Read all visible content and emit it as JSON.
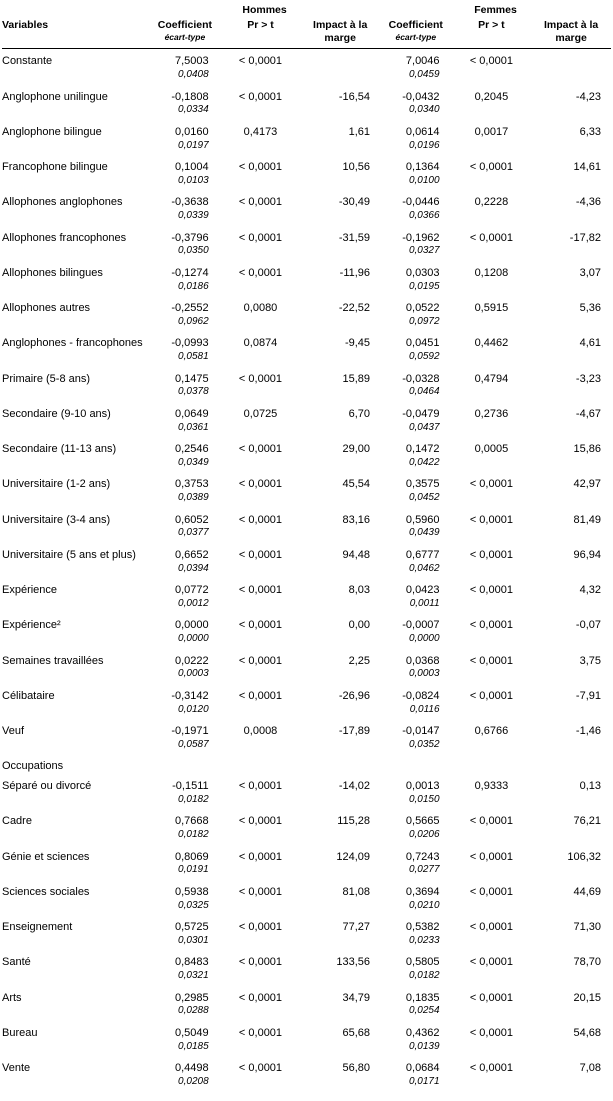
{
  "headers": {
    "variables": "Variables",
    "group_m": "Hommes",
    "group_f": "Femmes",
    "coef": "Coefficient",
    "coef_sub": "écart-type",
    "prt": "Pr > t",
    "impact_l1": "Impact à la",
    "impact_l2": "marge"
  },
  "sections": [
    {
      "label": "Occupations",
      "after_index": 20
    }
  ],
  "rows": [
    {
      "var": "Constante",
      "m": {
        "coef": "7,5003",
        "se": "0,0408",
        "pr": "< 0,0001",
        "imp": ""
      },
      "f": {
        "coef": "7,0046",
        "se": "0,0459",
        "pr": "< 0,0001",
        "imp": ""
      }
    },
    {
      "var": "Anglophone unilingue",
      "m": {
        "coef": "-0,1808",
        "se": "0,0334",
        "pr": "< 0,0001",
        "imp": "-16,54"
      },
      "f": {
        "coef": "-0,0432",
        "se": "0,0340",
        "pr": "0,2045",
        "imp": "-4,23"
      }
    },
    {
      "var": "Anglophone bilingue",
      "m": {
        "coef": "0,0160",
        "se": "0,0197",
        "pr": "0,4173",
        "imp": "1,61"
      },
      "f": {
        "coef": "0,0614",
        "se": "0,0196",
        "pr": "0,0017",
        "imp": "6,33"
      }
    },
    {
      "var": "Francophone bilingue",
      "m": {
        "coef": "0,1004",
        "se": "0,0103",
        "pr": "< 0,0001",
        "imp": "10,56"
      },
      "f": {
        "coef": "0,1364",
        "se": "0,0100",
        "pr": "< 0,0001",
        "imp": "14,61"
      }
    },
    {
      "var": "Allophones anglophones",
      "m": {
        "coef": "-0,3638",
        "se": "0,0339",
        "pr": "< 0,0001",
        "imp": "-30,49"
      },
      "f": {
        "coef": "-0,0446",
        "se": "0,0366",
        "pr": "0,2228",
        "imp": "-4,36"
      }
    },
    {
      "var": "Allophones francophones",
      "m": {
        "coef": "-0,3796",
        "se": "0,0350",
        "pr": "< 0,0001",
        "imp": "-31,59"
      },
      "f": {
        "coef": "-0,1962",
        "se": "0,0327",
        "pr": "< 0,0001",
        "imp": "-17,82"
      }
    },
    {
      "var": "Allophones bilingues",
      "m": {
        "coef": "-0,1274",
        "se": "0,0186",
        "pr": "< 0,0001",
        "imp": "-11,96"
      },
      "f": {
        "coef": "0,0303",
        "se": "0,0195",
        "pr": "0,1208",
        "imp": "3,07"
      }
    },
    {
      "var": "Allophones autres",
      "m": {
        "coef": "-0,2552",
        "se": "0,0962",
        "pr": "0,0080",
        "imp": "-22,52"
      },
      "f": {
        "coef": "0,0522",
        "se": "0,0972",
        "pr": "0,5915",
        "imp": "5,36"
      }
    },
    {
      "var": "Anglophones - francophones",
      "m": {
        "coef": "-0,0993",
        "se": "0,0581",
        "pr": "0,0874",
        "imp": "-9,45"
      },
      "f": {
        "coef": "0,0451",
        "se": "0,0592",
        "pr": "0,4462",
        "imp": "4,61"
      }
    },
    {
      "var": "Primaire (5-8 ans)",
      "m": {
        "coef": "0,1475",
        "se": "0,0378",
        "pr": "< 0,0001",
        "imp": "15,89"
      },
      "f": {
        "coef": "-0,0328",
        "se": "0,0464",
        "pr": "0,4794",
        "imp": "-3,23"
      }
    },
    {
      "var": "Secondaire (9-10 ans)",
      "m": {
        "coef": "0,0649",
        "se": "0,0361",
        "pr": "0,0725",
        "imp": "6,70"
      },
      "f": {
        "coef": "-0,0479",
        "se": "0,0437",
        "pr": "0,2736",
        "imp": "-4,67"
      }
    },
    {
      "var": "Secondaire (11-13 ans)",
      "m": {
        "coef": "0,2546",
        "se": "0,0349",
        "pr": "< 0,0001",
        "imp": "29,00"
      },
      "f": {
        "coef": "0,1472",
        "se": "0,0422",
        "pr": "0,0005",
        "imp": "15,86"
      }
    },
    {
      "var": "Universitaire (1-2 ans)",
      "m": {
        "coef": "0,3753",
        "se": "0,0389",
        "pr": "< 0,0001",
        "imp": "45,54"
      },
      "f": {
        "coef": "0,3575",
        "se": "0,0452",
        "pr": "< 0,0001",
        "imp": "42,97"
      }
    },
    {
      "var": "Universitaire (3-4 ans)",
      "m": {
        "coef": "0,6052",
        "se": "0,0377",
        "pr": "< 0,0001",
        "imp": "83,16"
      },
      "f": {
        "coef": "0,5960",
        "se": "0,0439",
        "pr": "< 0,0001",
        "imp": "81,49"
      }
    },
    {
      "var": "Universitaire (5 ans et plus)",
      "m": {
        "coef": "0,6652",
        "se": "0,0394",
        "pr": "< 0,0001",
        "imp": "94,48"
      },
      "f": {
        "coef": "0,6777",
        "se": "0,0462",
        "pr": "< 0,0001",
        "imp": "96,94"
      }
    },
    {
      "var": "Expérience",
      "m": {
        "coef": "0,0772",
        "se": "0,0012",
        "pr": "< 0,0001",
        "imp": "8,03"
      },
      "f": {
        "coef": "0,0423",
        "se": "0,0011",
        "pr": "< 0,0001",
        "imp": "4,32"
      }
    },
    {
      "var": "Expérience²",
      "m": {
        "coef": "0,0000",
        "se": "0,0000",
        "pr": "< 0,0001",
        "imp": "0,00"
      },
      "f": {
        "coef": "-0,0007",
        "se": "0,0000",
        "pr": "< 0,0001",
        "imp": "-0,07"
      }
    },
    {
      "var": "Semaines travaillées",
      "m": {
        "coef": "0,0222",
        "se": "0,0003",
        "pr": "< 0,0001",
        "imp": "2,25"
      },
      "f": {
        "coef": "0,0368",
        "se": "0,0003",
        "pr": "< 0,0001",
        "imp": "3,75"
      }
    },
    {
      "var": "Célibataire",
      "m": {
        "coef": "-0,3142",
        "se": "0,0120",
        "pr": "< 0,0001",
        "imp": "-26,96"
      },
      "f": {
        "coef": "-0,0824",
        "se": "0,0116",
        "pr": "< 0,0001",
        "imp": "-7,91"
      }
    },
    {
      "var": "Veuf",
      "m": {
        "coef": "-0,1971",
        "se": "0,0587",
        "pr": "0,0008",
        "imp": "-17,89"
      },
      "f": {
        "coef": "-0,0147",
        "se": "0,0352",
        "pr": "0,6766",
        "imp": "-1,46"
      }
    },
    {
      "var": "Séparé ou divorcé",
      "m": {
        "coef": "-0,1511",
        "se": "0,0182",
        "pr": "< 0,0001",
        "imp": "-14,02"
      },
      "f": {
        "coef": "0,0013",
        "se": "0,0150",
        "pr": "0,9333",
        "imp": "0,13"
      }
    },
    {
      "var": "Cadre",
      "m": {
        "coef": "0,7668",
        "se": "0,0182",
        "pr": "< 0,0001",
        "imp": "115,28"
      },
      "f": {
        "coef": "0,5665",
        "se": "0,0206",
        "pr": "< 0,0001",
        "imp": "76,21"
      }
    },
    {
      "var": "Génie et sciences",
      "m": {
        "coef": "0,8069",
        "se": "0,0191",
        "pr": "< 0,0001",
        "imp": "124,09"
      },
      "f": {
        "coef": "0,7243",
        "se": "0,0277",
        "pr": "< 0,0001",
        "imp": "106,32"
      }
    },
    {
      "var": "Sciences sociales",
      "m": {
        "coef": "0,5938",
        "se": "0,0325",
        "pr": "< 0,0001",
        "imp": "81,08"
      },
      "f": {
        "coef": "0,3694",
        "se": "0,0210",
        "pr": "< 0,0001",
        "imp": "44,69"
      }
    },
    {
      "var": "Enseignement",
      "m": {
        "coef": "0,5725",
        "se": "0,0301",
        "pr": "< 0,0001",
        "imp": "77,27"
      },
      "f": {
        "coef": "0,5382",
        "se": "0,0233",
        "pr": "< 0,0001",
        "imp": "71,30"
      }
    },
    {
      "var": "Santé",
      "m": {
        "coef": "0,8483",
        "se": "0,0321",
        "pr": "< 0,0001",
        "imp": "133,56"
      },
      "f": {
        "coef": "0,5805",
        "se": "0,0182",
        "pr": "< 0,0001",
        "imp": "78,70"
      }
    },
    {
      "var": "Arts",
      "m": {
        "coef": "0,2985",
        "se": "0,0288",
        "pr": "< 0,0001",
        "imp": "34,79"
      },
      "f": {
        "coef": "0,1835",
        "se": "0,0254",
        "pr": "< 0,0001",
        "imp": "20,15"
      }
    },
    {
      "var": "Bureau",
      "m": {
        "coef": "0,5049",
        "se": "0,0185",
        "pr": "< 0,0001",
        "imp": "65,68"
      },
      "f": {
        "coef": "0,4362",
        "se": "0,0139",
        "pr": "< 0,0001",
        "imp": "54,68"
      }
    },
    {
      "var": "Vente",
      "m": {
        "coef": "0,4498",
        "se": "0,0208",
        "pr": "< 0,0001",
        "imp": "56,80"
      },
      "f": {
        "coef": "0,0684",
        "se": "0,0171",
        "pr": "< 0,0001",
        "imp": "7,08"
      }
    }
  ]
}
